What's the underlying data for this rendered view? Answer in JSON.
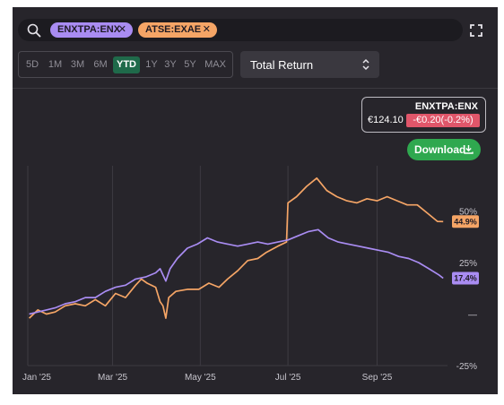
{
  "symbols": [
    {
      "label": "ENXTPA:ENX",
      "color": "#a98cf2"
    },
    {
      "label": "ATSE:EXAE",
      "color": "#f5a566"
    }
  ],
  "chip_close_glyph": "✕",
  "icons": {
    "search": "search-icon",
    "expand": "expand-icon",
    "close": "close-icon",
    "chevron": "chevron-updown-icon",
    "download": "download-icon"
  },
  "ranges": [
    "5D",
    "1M",
    "3M",
    "6M",
    "YTD",
    "1Y",
    "3Y",
    "5Y",
    "MAX"
  ],
  "active_range": "YTD",
  "metric": "Total Return",
  "tooltip": {
    "symbol": "ENXTPA:ENX",
    "price": "€124.10",
    "change": "-€0.20(-0.2%)"
  },
  "download_label": "Download",
  "colors": {
    "background": "#27252b",
    "purple": "#a98cf2",
    "orange": "#f5a566",
    "active": "#1f6a4a",
    "negative": "#e0566a",
    "download": "#2fa84f"
  },
  "chart_data": {
    "type": "line",
    "x_unit": "date",
    "xlim": [
      "2025-01-01",
      "2025-10-20"
    ],
    "ylim": [
      -25,
      72
    ],
    "y_ticks": [
      50,
      25,
      0,
      -25
    ],
    "y_tick_labels": [
      "50%",
      "25%",
      "—",
      "-25%"
    ],
    "x_ticks": [
      {
        "date": "2025-01-01",
        "label": "Jan '25"
      },
      {
        "date": "2025-03-01",
        "label": "Mar '25"
      },
      {
        "date": "2025-05-01",
        "label": "May '25"
      },
      {
        "date": "2025-07-01",
        "label": "Jul '25"
      },
      {
        "date": "2025-09-01",
        "label": "Sep '25"
      }
    ],
    "grid": true,
    "series": [
      {
        "name": "ATSE:EXAE",
        "color": "#f5a566",
        "last_label": "44.9%",
        "points": [
          [
            "2025-01-02",
            -2
          ],
          [
            "2025-01-08",
            2
          ],
          [
            "2025-01-14",
            0
          ],
          [
            "2025-01-20",
            1
          ],
          [
            "2025-01-27",
            4
          ],
          [
            "2025-02-03",
            5
          ],
          [
            "2025-02-10",
            4
          ],
          [
            "2025-02-17",
            7
          ],
          [
            "2025-02-24",
            4
          ],
          [
            "2025-03-03",
            10
          ],
          [
            "2025-03-10",
            8
          ],
          [
            "2025-03-17",
            14
          ],
          [
            "2025-03-21",
            17
          ],
          [
            "2025-03-25",
            15
          ],
          [
            "2025-03-31",
            13
          ],
          [
            "2025-04-03",
            6
          ],
          [
            "2025-04-05",
            4
          ],
          [
            "2025-04-07",
            -2
          ],
          [
            "2025-04-09",
            8
          ],
          [
            "2025-04-14",
            11
          ],
          [
            "2025-04-22",
            12
          ],
          [
            "2025-04-30",
            12
          ],
          [
            "2025-05-07",
            15
          ],
          [
            "2025-05-14",
            13
          ],
          [
            "2025-05-20",
            17
          ],
          [
            "2025-05-27",
            21
          ],
          [
            "2025-06-03",
            26
          ],
          [
            "2025-06-10",
            27
          ],
          [
            "2025-06-16",
            30
          ],
          [
            "2025-06-24",
            33
          ],
          [
            "2025-06-30",
            35
          ],
          [
            "2025-07-01",
            54
          ],
          [
            "2025-07-07",
            57
          ],
          [
            "2025-07-14",
            62
          ],
          [
            "2025-07-21",
            66
          ],
          [
            "2025-07-28",
            60
          ],
          [
            "2025-08-04",
            57
          ],
          [
            "2025-08-11",
            55
          ],
          [
            "2025-08-18",
            54
          ],
          [
            "2025-08-25",
            56
          ],
          [
            "2025-09-01",
            55
          ],
          [
            "2025-09-08",
            57
          ],
          [
            "2025-09-15",
            55
          ],
          [
            "2025-09-22",
            53
          ],
          [
            "2025-09-29",
            53
          ],
          [
            "2025-10-06",
            49
          ],
          [
            "2025-10-13",
            45
          ],
          [
            "2025-10-17",
            44.9
          ]
        ]
      },
      {
        "name": "ENXTPA:ENX",
        "color": "#a98cf2",
        "last_label": "17.4%",
        "points": [
          [
            "2025-01-02",
            0
          ],
          [
            "2025-01-08",
            1
          ],
          [
            "2025-01-14",
            2
          ],
          [
            "2025-01-20",
            3
          ],
          [
            "2025-01-27",
            5
          ],
          [
            "2025-02-03",
            6
          ],
          [
            "2025-02-10",
            8
          ],
          [
            "2025-02-17",
            8
          ],
          [
            "2025-02-24",
            11
          ],
          [
            "2025-03-03",
            13
          ],
          [
            "2025-03-10",
            14
          ],
          [
            "2025-03-17",
            17
          ],
          [
            "2025-03-24",
            18
          ],
          [
            "2025-03-31",
            20
          ],
          [
            "2025-04-03",
            22
          ],
          [
            "2025-04-07",
            16
          ],
          [
            "2025-04-10",
            22
          ],
          [
            "2025-04-15",
            27
          ],
          [
            "2025-04-22",
            32
          ],
          [
            "2025-04-29",
            34
          ],
          [
            "2025-05-06",
            37
          ],
          [
            "2025-05-13",
            35
          ],
          [
            "2025-05-20",
            34
          ],
          [
            "2025-05-27",
            33
          ],
          [
            "2025-06-03",
            34
          ],
          [
            "2025-06-10",
            35
          ],
          [
            "2025-06-17",
            34
          ],
          [
            "2025-06-24",
            35
          ],
          [
            "2025-07-01",
            36
          ],
          [
            "2025-07-08",
            38
          ],
          [
            "2025-07-15",
            40
          ],
          [
            "2025-07-22",
            41
          ],
          [
            "2025-07-29",
            37
          ],
          [
            "2025-08-05",
            35
          ],
          [
            "2025-08-12",
            34
          ],
          [
            "2025-08-19",
            33
          ],
          [
            "2025-08-26",
            32
          ],
          [
            "2025-09-02",
            31
          ],
          [
            "2025-09-09",
            30
          ],
          [
            "2025-09-16",
            28
          ],
          [
            "2025-09-23",
            27
          ],
          [
            "2025-09-30",
            25
          ],
          [
            "2025-10-07",
            22
          ],
          [
            "2025-10-14",
            19
          ],
          [
            "2025-10-17",
            17.4
          ]
        ]
      }
    ]
  }
}
